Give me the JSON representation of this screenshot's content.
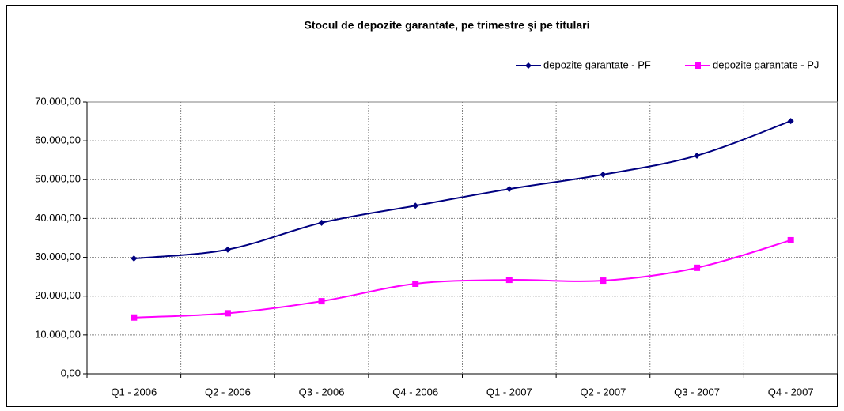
{
  "chart_data": {
    "type": "line",
    "title": "Stocul de depozite garantate, pe trimestre şi pe titulari",
    "categories": [
      "Q1 - 2006",
      "Q2 - 2006",
      "Q3 - 2006",
      "Q4 - 2006",
      "Q1 - 2007",
      "Q2 - 2007",
      "Q3 - 2007",
      "Q4 - 2007"
    ],
    "series": [
      {
        "name": "depozite garantate - PF",
        "color": "#000080",
        "marker": "diamond",
        "values": [
          29700,
          32000,
          38900,
          43300,
          47600,
          51300,
          56200,
          65100
        ]
      },
      {
        "name": "depozite garantate - PJ",
        "color": "#ff00ff",
        "marker": "square",
        "values": [
          14500,
          15600,
          18700,
          23200,
          24200,
          24000,
          27300,
          34400
        ]
      }
    ],
    "ylim": [
      0,
      70000
    ],
    "yticks": [
      {
        "value": 0,
        "label": "0,00"
      },
      {
        "value": 10000,
        "label": "10.000,00"
      },
      {
        "value": 20000,
        "label": "20.000,00"
      },
      {
        "value": 30000,
        "label": "30.000,00"
      },
      {
        "value": 40000,
        "label": "40.000,00"
      },
      {
        "value": 50000,
        "label": "50.000,00"
      },
      {
        "value": 60000,
        "label": "60.000,00"
      },
      {
        "value": 70000,
        "label": "70.000,00"
      }
    ],
    "grid": true,
    "legend": "top-right"
  }
}
